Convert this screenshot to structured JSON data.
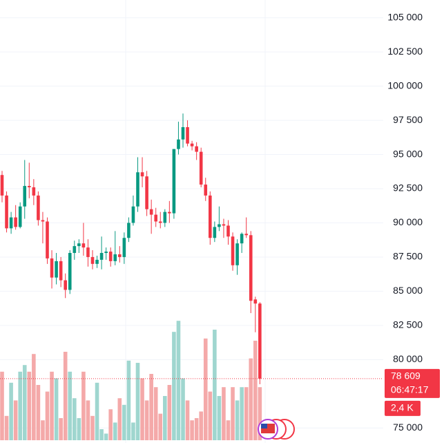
{
  "chart_data": {
    "type": "candlestick",
    "ylim": [
      73900,
      106300
    ],
    "yticks": [
      {
        "value": 105000,
        "label": "105 000"
      },
      {
        "value": 102500,
        "label": "102 500"
      },
      {
        "value": 100000,
        "label": "100 000"
      },
      {
        "value": 97500,
        "label": "97 500"
      },
      {
        "value": 95000,
        "label": "95 000"
      },
      {
        "value": 92500,
        "label": "92 500"
      },
      {
        "value": 90000,
        "label": "90 000"
      },
      {
        "value": 87500,
        "label": "87 500"
      },
      {
        "value": 85000,
        "label": "85 000"
      },
      {
        "value": 82500,
        "label": "82 500"
      },
      {
        "value": 80000,
        "label": "80 000"
      },
      {
        "value": 75000,
        "label": "75 000"
      }
    ],
    "grid": true,
    "up_color": "#089981",
    "down_color": "#f23645",
    "up_volume_color": "#9fd6cf",
    "down_volume_color": "#f4a9a9",
    "candles": [
      [
        93500,
        93800,
        91500,
        92000
      ],
      [
        92000,
        92300,
        89300,
        89600
      ],
      [
        89600,
        90800,
        89200,
        90400
      ],
      [
        90400,
        91300,
        89500,
        89700
      ],
      [
        89700,
        91500,
        89600,
        91200
      ],
      [
        91200,
        94600,
        90300,
        92700
      ],
      [
        92700,
        94400,
        91800,
        92600
      ],
      [
        92600,
        93200,
        91300,
        92000
      ],
      [
        92000,
        92300,
        89800,
        90200
      ],
      [
        90200,
        90800,
        88500,
        90100
      ],
      [
        90100,
        90400,
        87000,
        87400
      ],
      [
        87400,
        88000,
        85200,
        86000
      ],
      [
        86000,
        87800,
        85500,
        87200
      ],
      [
        87200,
        87500,
        85300,
        85800
      ],
      [
        85800,
        86300,
        84500,
        85100
      ],
      [
        85100,
        88000,
        84800,
        87800
      ],
      [
        87800,
        88700,
        87300,
        88300
      ],
      [
        88300,
        88800,
        87800,
        88500
      ],
      [
        88500,
        90000,
        87600,
        88200
      ],
      [
        88200,
        88800,
        86800,
        87500
      ],
      [
        87500,
        88000,
        86600,
        87000
      ],
      [
        87000,
        87600,
        86700,
        87300
      ],
      [
        87300,
        89000,
        86600,
        87800
      ],
      [
        87800,
        88200,
        87300,
        87900
      ],
      [
        87900,
        88200,
        86800,
        87200
      ],
      [
        87200,
        89400,
        86900,
        87700
      ],
      [
        87700,
        88300,
        87100,
        87500
      ],
      [
        87500,
        89300,
        87000,
        88900
      ],
      [
        88900,
        90400,
        88600,
        90000
      ],
      [
        90000,
        92000,
        89800,
        91200
      ],
      [
        91200,
        94800,
        90800,
        93700
      ],
      [
        93700,
        94800,
        92600,
        93400
      ],
      [
        93400,
        93800,
        90500,
        91000
      ],
      [
        91000,
        91700,
        89200,
        90600
      ],
      [
        90600,
        91100,
        89700,
        90100
      ],
      [
        90100,
        90800,
        89600,
        90000
      ],
      [
        90000,
        91000,
        89700,
        90800
      ],
      [
        90800,
        91600,
        90000,
        90700
      ],
      [
        90700,
        95400,
        90300,
        95400
      ],
      [
        95400,
        97400,
        95000,
        96100
      ],
      [
        96100,
        98000,
        95500,
        97000
      ],
      [
        97000,
        97500,
        95600,
        95800
      ],
      [
        95800,
        96000,
        95300,
        95600
      ],
      [
        95600,
        95900,
        94600,
        95200
      ],
      [
        95200,
        95500,
        92600,
        92800
      ],
      [
        92800,
        93300,
        91600,
        92000
      ],
      [
        92000,
        92300,
        88400,
        88900
      ],
      [
        88900,
        90100,
        88600,
        89700
      ],
      [
        89700,
        91200,
        89400,
        89900
      ],
      [
        89900,
        90300,
        88900,
        89800
      ],
      [
        89800,
        90200,
        88400,
        89000
      ],
      [
        89000,
        89300,
        86500,
        86900
      ],
      [
        86900,
        88800,
        86200,
        88500
      ],
      [
        88500,
        89300,
        87800,
        89200
      ],
      [
        89200,
        90400,
        88900,
        89100
      ],
      [
        89100,
        89400,
        83400,
        84300
      ],
      [
        84400,
        84600,
        82000,
        84100
      ],
      [
        84100,
        84200,
        78200,
        78609
      ]
    ],
    "volume_ylim": [
      0,
      20
    ],
    "volumes": [
      3.1,
      1.1,
      2.6,
      1.8,
      3.1,
      3.4,
      3.1,
      3.9,
      2.5,
      0.9,
      2.2,
      3.1,
      2.8,
      1.0,
      4.0,
      3.1,
      1.9,
      1.0,
      3.1,
      1.8,
      1.1,
      2.6,
      0.5,
      0.3,
      1.4,
      0.8,
      1.9,
      1.6,
      3.6,
      0.8,
      3.5,
      2.8,
      1.8,
      3.0,
      2.4,
      1.2,
      2.0,
      2.5,
      4.9,
      5.4,
      2.8,
      1.8,
      0.9,
      1.0,
      1.3,
      4.6,
      2.2,
      5.0,
      2.0,
      2.4,
      0.9,
      2.4,
      1.8,
      2.4,
      2.4,
      3.7,
      4.5,
      2.4
    ],
    "last_price": {
      "value": 78609,
      "label": "78 609"
    },
    "countdown": "06:47:17",
    "last_volume_label": "2,4 K"
  }
}
